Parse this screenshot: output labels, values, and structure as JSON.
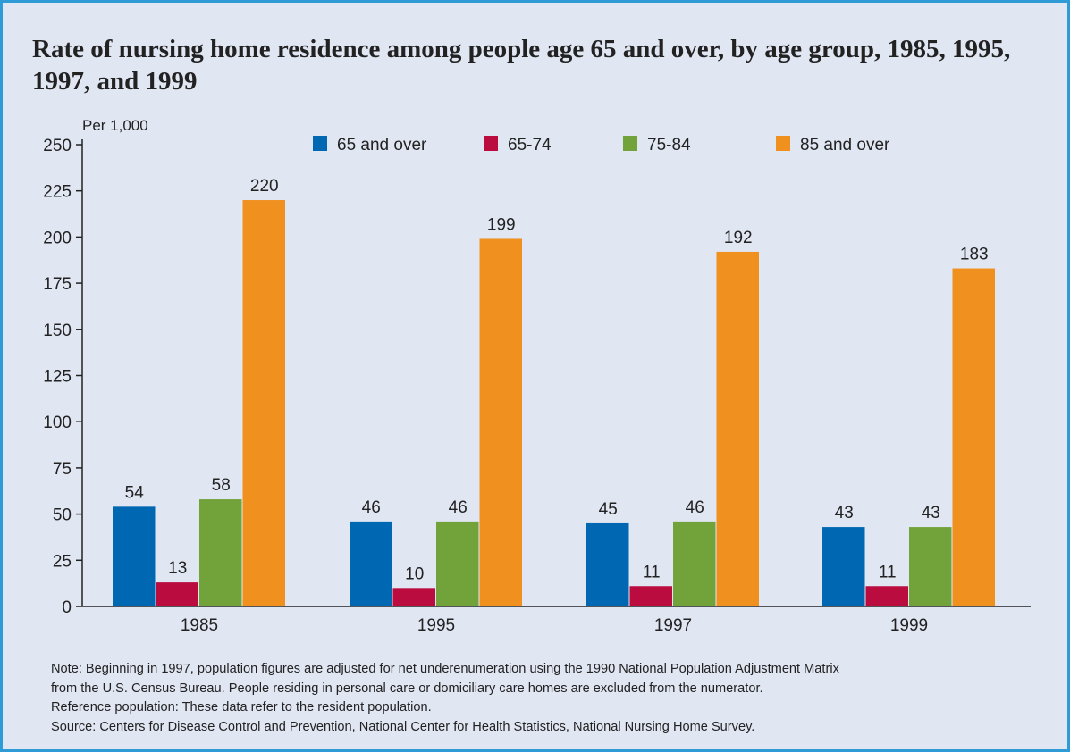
{
  "title": "Rate of nursing home residence among people age 65 and over, by age group, 1985, 1995, 1997, and 1999",
  "colors": {
    "frame_border": "#2f9bd6",
    "background": "#e1e6f3"
  },
  "chart_data": {
    "type": "bar",
    "title": "Rate of nursing home residence among people age 65 and over, by age group, 1985, 1995, 1997, and 1999",
    "ylabel": "Per 1,000",
    "xlabel": "",
    "categories": [
      "1985",
      "1995",
      "1997",
      "1999"
    ],
    "series": [
      {
        "name": "65 and over",
        "color": "#0068b3",
        "values": [
          54,
          46,
          45,
          43
        ]
      },
      {
        "name": "65-74",
        "color": "#bb0c40",
        "values": [
          13,
          10,
          11,
          11
        ]
      },
      {
        "name": "75-84",
        "color": "#72a33a",
        "values": [
          58,
          46,
          46,
          43
        ]
      },
      {
        "name": "85 and over",
        "color": "#f0901f",
        "values": [
          220,
          199,
          192,
          183
        ]
      }
    ],
    "ylim": [
      0,
      250
    ],
    "yticks": [
      0,
      25,
      50,
      75,
      100,
      125,
      150,
      175,
      200,
      225,
      250
    ],
    "data_labels": true,
    "grid": false,
    "legend_position": "top"
  },
  "notes": [
    "Note:  Beginning in 1997, population figures are adjusted for net underenumeration using the 1990 National Population Adjustment Matrix",
    "from the U.S. Census Bureau. People residing in personal care or domiciliary care homes are excluded from the numerator.",
    "Reference population:  These data refer to the resident population.",
    "Source:  Centers for Disease Control and Prevention, National Center for Health Statistics, National Nursing Home Survey."
  ]
}
